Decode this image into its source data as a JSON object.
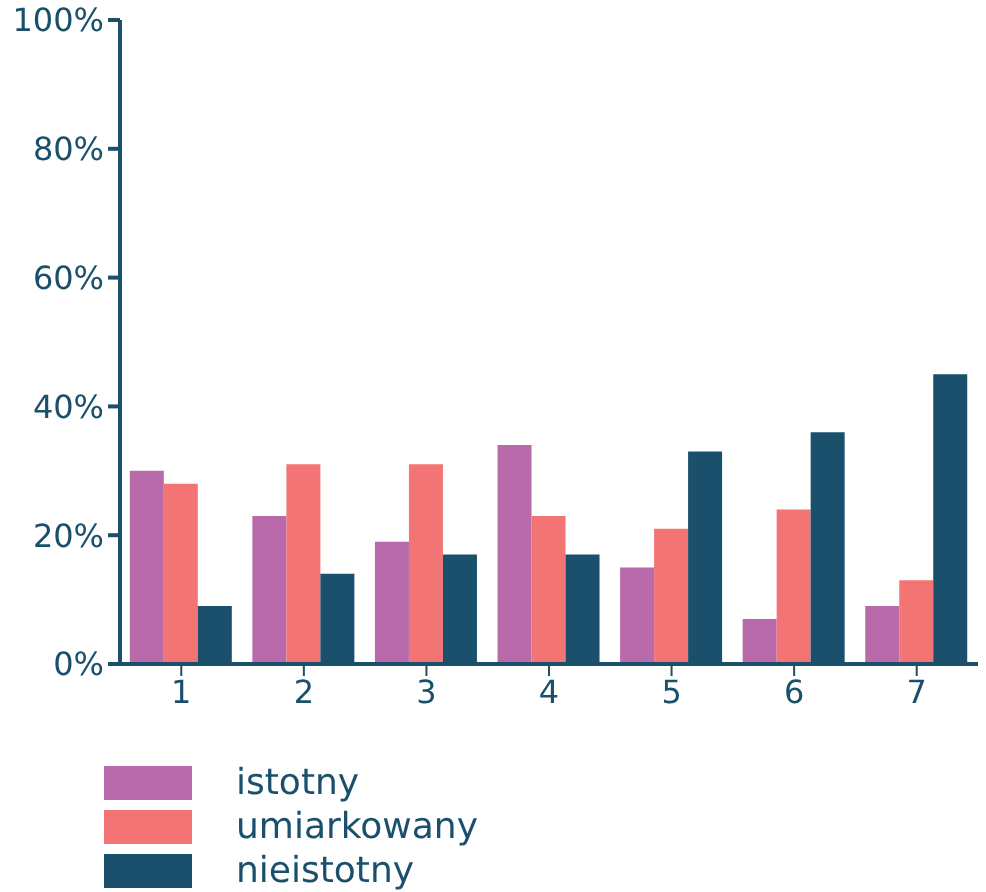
{
  "chart_data": {
    "type": "bar",
    "categories": [
      "1",
      "2",
      "3",
      "4",
      "5",
      "6",
      "7"
    ],
    "series": [
      {
        "name": "istotny",
        "color": "#b86aaa",
        "values": [
          30,
          23,
          19,
          34,
          15,
          7,
          9
        ]
      },
      {
        "name": "umiarkowany",
        "color": "#f27474",
        "values": [
          28,
          31,
          31,
          23,
          21,
          24,
          13
        ]
      },
      {
        "name": "nieistotny",
        "color": "#1a506c",
        "values": [
          9,
          14,
          17,
          17,
          33,
          36,
          45
        ]
      }
    ],
    "ylim": [
      0,
      100
    ],
    "yticks": [
      {
        "value": 0,
        "label": "0%"
      },
      {
        "value": 20,
        "label": "20%"
      },
      {
        "value": 40,
        "label": "40%"
      },
      {
        "value": 60,
        "label": "60%"
      },
      {
        "value": 80,
        "label": "80%"
      },
      {
        "value": 100,
        "label": "100%"
      }
    ],
    "grid": false,
    "legend": "bottom"
  }
}
